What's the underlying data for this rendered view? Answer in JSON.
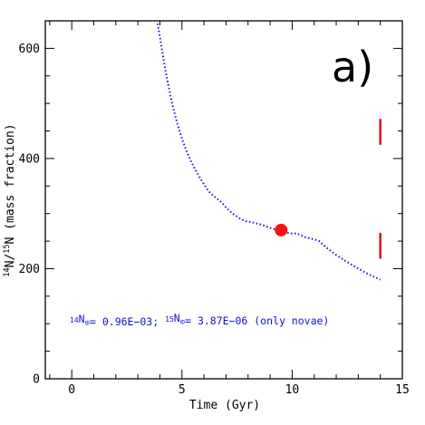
{
  "chart_data": {
    "type": "line",
    "title": "",
    "panel_label": "a)",
    "xlabel": "Time (Gyr)",
    "ylabel": {
      "iso1": "14",
      "el1": "N/",
      "iso2": "15",
      "el2": "N (mass fraction)"
    },
    "xlim": [
      -1.2,
      15
    ],
    "ylim": [
      0,
      650
    ],
    "xticks": [
      0,
      5,
      10,
      15
    ],
    "yticks": [
      0,
      200,
      400,
      600
    ],
    "grid": false,
    "series": [
      {
        "style": "dotted",
        "color": "#1f1fd6",
        "x": [
          3.9,
          4.0,
          4.1,
          4.2,
          4.3,
          4.4,
          4.5,
          4.6,
          4.7,
          4.8,
          5.0,
          5.2,
          5.4,
          5.6,
          5.8,
          6.0,
          6.2,
          6.4,
          6.6,
          6.8,
          7.0,
          7.3,
          7.6,
          7.9,
          8.2,
          8.6,
          9.0,
          9.5,
          9.9,
          10.2,
          10.6,
          10.9,
          11.2,
          11.5,
          12.0,
          12.5,
          13.0,
          13.5,
          14.0
        ],
        "y": [
          645,
          620,
          596,
          572,
          550,
          530,
          510,
          492,
          477,
          462,
          436,
          414,
          396,
          380,
          366,
          353,
          341,
          333,
          327,
          320,
          311,
          300,
          292,
          286,
          284,
          280,
          274,
          268,
          264,
          264,
          257,
          254,
          251,
          240,
          225,
          212,
          200,
          189,
          180
        ]
      }
    ],
    "marker": {
      "x": 9.5,
      "y": 270,
      "color": "#ff1010"
    },
    "error_bars": [
      {
        "x": 14.0,
        "y_low": 425,
        "y_high": 472,
        "color": "#e01010"
      },
      {
        "x": 14.0,
        "y_low": 218,
        "y_high": 265,
        "color": "#e01010"
      }
    ],
    "annotation": {
      "color": "#1010d0",
      "parts": [
        {
          "text": "14",
          "sup": true
        },
        {
          "text": "N"
        },
        {
          "text": "⊙",
          "sub": true
        },
        {
          "text": "= 0.96E−03; "
        },
        {
          "text": "15",
          "sup": true
        },
        {
          "text": "N"
        },
        {
          "text": "⊙",
          "sub": true
        },
        {
          "text": "= 3.87E−06 (only novae)"
        }
      ],
      "x": 0.0,
      "y": 105
    }
  }
}
